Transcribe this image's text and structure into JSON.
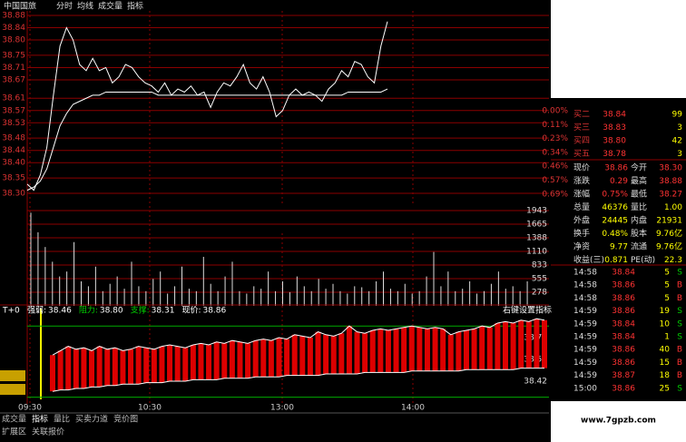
{
  "header": {
    "stock": "中国国旅",
    "tabs": [
      "分时",
      "均线",
      "成交量",
      "指标"
    ]
  },
  "chart": {
    "ylim": [
      38.3,
      38.88
    ],
    "yticks": [
      38.84,
      {
        "value": 38.8,
        "label": "38.80"
      },
      38.75,
      38.71,
      38.67,
      38.61,
      38.57,
      38.53,
      38.48,
      38.44,
      {
        "value": 38.4,
        "label": "38.40"
      },
      38.35,
      {
        "value": 38.3,
        "label": "38.30"
      },
      38.88
    ],
    "pct_ticks": [
      "0.00%",
      "0.11%",
      "0.23%",
      "0.34%",
      "0.46%",
      "0.57%",
      "0.69%"
    ],
    "price": {
      "color": "#ffffff",
      "values": [
        38.33,
        38.31,
        38.36,
        38.45,
        38.62,
        38.78,
        38.84,
        38.8,
        38.72,
        38.7,
        38.74,
        38.7,
        38.71,
        38.66,
        38.68,
        38.72,
        38.71,
        38.68,
        38.66,
        38.65,
        38.63,
        38.66,
        38.62,
        38.64,
        38.63,
        38.65,
        38.62,
        38.63,
        38.58,
        38.63,
        38.66,
        38.65,
        38.68,
        38.72,
        38.66,
        38.64,
        38.68,
        38.63,
        38.55,
        38.57,
        38.62,
        38.64,
        38.62,
        38.63,
        38.62,
        38.6,
        38.64,
        38.66,
        38.7,
        38.68,
        38.73,
        38.72,
        38.68,
        38.66,
        38.78,
        38.86
      ]
    },
    "avg": {
      "color": "#ffffff",
      "values": [
        38.31,
        38.32,
        38.34,
        38.38,
        38.45,
        38.52,
        38.56,
        38.59,
        38.6,
        38.61,
        38.62,
        38.62,
        38.63,
        38.63,
        38.63,
        38.63,
        38.63,
        38.63,
        38.63,
        38.63,
        38.62,
        38.62,
        38.62,
        38.62,
        38.62,
        38.62,
        38.62,
        38.62,
        38.62,
        38.62,
        38.62,
        38.62,
        38.62,
        38.62,
        38.62,
        38.62,
        38.62,
        38.62,
        38.62,
        38.62,
        38.62,
        38.62,
        38.62,
        38.62,
        38.62,
        38.62,
        38.62,
        38.62,
        38.62,
        38.63,
        38.63,
        38.63,
        38.63,
        38.63,
        38.63,
        38.64
      ]
    },
    "volume": {
      "ticks": [
        1943,
        1665,
        1388,
        1110,
        833,
        555,
        278
      ],
      "values": [
        1900,
        1500,
        1200,
        900,
        600,
        700,
        1300,
        500,
        400,
        800,
        300,
        450,
        600,
        350,
        900,
        400,
        300,
        550,
        700,
        250,
        400,
        800,
        350,
        300,
        1000,
        450,
        300,
        600,
        900,
        300,
        250,
        400,
        350,
        700,
        300,
        500,
        280,
        600,
        400,
        300,
        550,
        350,
        450,
        300,
        250,
        400,
        380,
        300,
        500,
        700,
        350,
        300,
        450,
        250,
        300,
        600,
        1100,
        400,
        700,
        300,
        350,
        500,
        250,
        300,
        450,
        700,
        350,
        400,
        300,
        500
      ]
    },
    "indicator": {
      "name": "T+0",
      "fields": [
        {
          "label": "强弱:",
          "value": 38.46
        },
        {
          "label": "阻力:",
          "value": {
            "value": 38.8,
            "label": "38.80"
          }
        },
        {
          "label": "支撑:",
          "value": 38.31
        },
        {
          "label": "现价:",
          "value": 38.86
        }
      ],
      "setting": "右键设置指标",
      "ticks": [
        38.72,
        38.57,
        38.42
      ],
      "strength": [
        38.6,
        38.63,
        38.66,
        38.64,
        38.65,
        38.63,
        38.66,
        38.64,
        38.65,
        38.63,
        38.64,
        38.66,
        38.65,
        38.64,
        38.66,
        38.67,
        38.66,
        38.65,
        38.67,
        38.68,
        38.67,
        38.69,
        38.68,
        38.7,
        38.69,
        38.68,
        38.7,
        38.71,
        38.7,
        38.72,
        38.71,
        38.74,
        38.73,
        38.72,
        38.76,
        38.74,
        38.73,
        38.75,
        38.8,
        38.76,
        38.75,
        38.77,
        38.78,
        38.77,
        38.78,
        38.79,
        38.8,
        38.79,
        38.78,
        38.79,
        38.78,
        38.74,
        38.76,
        38.77,
        38.78,
        38.8,
        38.79,
        38.82,
        38.83,
        38.82,
        38.84,
        38.83,
        38.85,
        38.84
      ],
      "base": [
        38.35,
        38.36,
        38.36,
        38.37,
        38.37,
        38.38,
        38.38,
        38.39,
        38.39,
        38.4,
        38.4,
        38.4,
        38.41,
        38.41,
        38.41,
        38.42,
        38.42,
        38.42,
        38.43,
        38.43,
        38.43,
        38.43,
        38.44,
        38.44,
        38.44,
        38.44,
        38.45,
        38.45,
        38.45,
        38.45,
        38.46,
        38.46,
        38.46,
        38.46,
        38.46,
        38.47,
        38.47,
        38.47,
        38.47,
        38.47,
        38.48,
        38.48,
        38.48,
        38.48,
        38.48,
        38.48,
        38.49,
        38.49,
        38.49,
        38.49,
        38.49,
        38.49,
        38.49,
        38.5,
        38.5,
        38.5,
        38.5,
        38.5,
        38.5,
        38.5,
        38.51,
        38.51,
        38.51,
        38.51
      ]
    },
    "times": [
      "09:30",
      "10:30",
      "13:00",
      "14:00"
    ]
  },
  "tabs": {
    "row1": [
      "成交量",
      "指标",
      "量比",
      "买卖力道",
      "竞价图"
    ],
    "row2": [
      "扩展区",
      "关联报价"
    ]
  },
  "book": [
    [
      "买二",
      "38.84",
      "99"
    ],
    [
      "买三",
      "38.83",
      "3"
    ],
    [
      "买四",
      "38.80",
      "42"
    ],
    [
      "买五",
      "38.78",
      "3"
    ]
  ],
  "stats": [
    [
      "现价",
      "38.86",
      "今开",
      "38.30"
    ],
    [
      "涨跌",
      "0.29",
      "最高",
      "38.88"
    ],
    [
      "涨幅",
      "0.75%",
      "最低",
      "38.27"
    ],
    [
      "总量",
      "46376",
      "量比",
      "1.00"
    ],
    [
      "外盘",
      "24445",
      "内盘",
      "21931"
    ],
    [
      "换手",
      "0.48%",
      "股本",
      "9.76亿"
    ],
    [
      "净资",
      "9.77",
      "流通",
      "9.76亿"
    ],
    [
      "收益(三)",
      "0.871",
      "PE(动)",
      "22.3"
    ]
  ],
  "trades": [
    [
      "14:58",
      "38.84",
      "5",
      "S"
    ],
    [
      "14:58",
      "38.86",
      "5",
      "B"
    ],
    [
      "14:58",
      "38.86",
      "5",
      "B"
    ],
    [
      "14:59",
      "38.86",
      "19",
      "S"
    ],
    [
      "14:59",
      "38.84",
      "10",
      "S"
    ],
    [
      "14:59",
      "38.84",
      "1",
      "S"
    ],
    [
      "14:59",
      "38.86",
      "40",
      "B"
    ],
    [
      "14:59",
      "38.86",
      "15",
      "B"
    ],
    [
      "14:59",
      "38.87",
      "18",
      "B"
    ],
    [
      "15:00",
      "38.86",
      "25",
      "S"
    ]
  ],
  "watermark": "www.7gpzb.com"
}
